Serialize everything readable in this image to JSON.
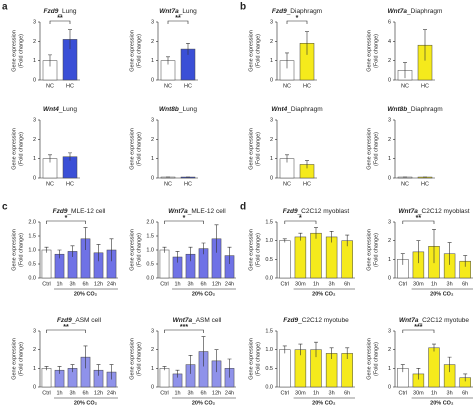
{
  "panel_labels": [
    "a",
    "b",
    "c",
    "d"
  ],
  "chart_data": [
    {
      "type": "bar",
      "title_gene": "Fzd9",
      "title_suffix": "_Lung",
      "ylabel": [
        "Gene expression",
        "(Fold change)"
      ],
      "categories": [
        "NC",
        "HC"
      ],
      "values": [
        1.0,
        2.1
      ],
      "errors": [
        0.3,
        0.5
      ],
      "colors": [
        "#ffffff",
        "#3a4fd6"
      ],
      "ylim": [
        0,
        3
      ],
      "yticks": [
        0,
        1,
        2,
        3
      ],
      "sig": {
        "label": "**",
        "between": [
          "NC",
          "HC"
        ]
      }
    },
    {
      "type": "bar",
      "title_gene": "Wnt7a",
      "title_suffix": "_Lung",
      "ylabel": [
        "Gene expression",
        "(Fold change)"
      ],
      "categories": [
        "NC",
        "HC"
      ],
      "values": [
        1.0,
        1.6
      ],
      "errors": [
        0.2,
        0.3
      ],
      "colors": [
        "#ffffff",
        "#3a4fd6"
      ],
      "ylim": [
        0,
        3
      ],
      "yticks": [
        0,
        1,
        2,
        3
      ],
      "sig": {
        "label": "**",
        "between": [
          "NC",
          "HC"
        ]
      }
    },
    {
      "type": "bar",
      "title_gene": "Wnt4",
      "title_suffix": "_Lung",
      "ylabel": [
        "Gene expression",
        "(Fold change)"
      ],
      "categories": [
        "NC",
        "HC"
      ],
      "values": [
        1.0,
        1.1
      ],
      "errors": [
        0.2,
        0.2
      ],
      "colors": [
        "#ffffff",
        "#3a4fd6"
      ],
      "ylim": [
        0,
        3
      ],
      "yticks": [
        0,
        1,
        2,
        3
      ]
    },
    {
      "type": "bar",
      "title_gene": "Wnt8b",
      "title_suffix": "_Lung",
      "ylabel": [
        "Gene expression",
        "(Fold change)"
      ],
      "categories": [
        "NC",
        "HC"
      ],
      "values": [
        0.05,
        0.05
      ],
      "errors": [
        0,
        0
      ],
      "colors": [
        "#ffffff",
        "#3a4fd6"
      ],
      "ylim": [
        0,
        3
      ],
      "yticks": [
        0,
        1,
        2,
        3
      ]
    },
    {
      "type": "bar",
      "title_gene": "Fzd9",
      "title_suffix": "_Diaphragm",
      "ylabel": [
        "Gene expression",
        "(Fold change)"
      ],
      "categories": [
        "NC",
        "HC"
      ],
      "values": [
        1.0,
        1.9
      ],
      "errors": [
        0.4,
        0.6
      ],
      "colors": [
        "#ffffff",
        "#f5ea1c"
      ],
      "ylim": [
        0,
        3
      ],
      "yticks": [
        0,
        1,
        2,
        3
      ],
      "sig": {
        "label": "*",
        "between": [
          "NC",
          "HC"
        ]
      }
    },
    {
      "type": "bar",
      "title_gene": "Wnt7a",
      "title_suffix": "_Diaphragm",
      "ylabel": [
        "Gene expression",
        "(Fold change)"
      ],
      "categories": [
        "NC",
        "HC"
      ],
      "values": [
        1.0,
        3.6
      ],
      "errors": [
        0.8,
        1.6
      ],
      "colors": [
        "#ffffff",
        "#f5ea1c"
      ],
      "ylim": [
        0,
        6
      ],
      "yticks": [
        0,
        2,
        4,
        6
      ]
    },
    {
      "type": "bar",
      "title_gene": "Wnt4",
      "title_suffix": "_Diaphragm",
      "ylabel": [
        "Gene expression",
        "(Fold change)"
      ],
      "categories": [
        "NC",
        "HC"
      ],
      "values": [
        1.0,
        0.7
      ],
      "errors": [
        0.2,
        0.2
      ],
      "colors": [
        "#ffffff",
        "#f5ea1c"
      ],
      "ylim": [
        0,
        3
      ],
      "yticks": [
        0,
        1,
        2,
        3
      ]
    },
    {
      "type": "bar",
      "title_gene": "Wnt8b",
      "title_suffix": "_Diaphragm",
      "ylabel": [
        "Gene expression",
        "(Fold change)"
      ],
      "categories": [
        "NC",
        "HC"
      ],
      "values": [
        0.05,
        0.05
      ],
      "errors": [
        0,
        0
      ],
      "colors": [
        "#ffffff",
        "#f5ea1c"
      ],
      "ylim": [
        0,
        3
      ],
      "yticks": [
        0,
        1,
        2,
        3
      ]
    },
    {
      "type": "bar",
      "title_gene": "Fzd9",
      "title_suffix": "_MLE-12 cell",
      "ylabel": [
        "Gene expression",
        "(Fold change)"
      ],
      "categories": [
        "Ctrl",
        "1h",
        "3h",
        "6h",
        "12h",
        "24h"
      ],
      "values": [
        1.0,
        0.85,
        0.95,
        1.4,
        0.9,
        1.0
      ],
      "errors": [
        0.1,
        0.15,
        0.2,
        0.4,
        0.3,
        0.4
      ],
      "colors": [
        "#ffffff",
        "#6f72e6",
        "#6f72e6",
        "#6f72e6",
        "#6f72e6",
        "#6f72e6"
      ],
      "ylim": [
        0,
        2
      ],
      "yticks": [
        {
          "value": 0,
          "label": "0.0"
        },
        {
          "value": 0.5,
          "label": "0.5"
        },
        {
          "value": 1,
          "label": "1.0"
        },
        {
          "value": 1.5,
          "label": "1.5"
        },
        {
          "value": 2,
          "label": "2.0"
        }
      ],
      "group_label": "20% CO₂",
      "sig": {
        "label": "*",
        "between": [
          "Ctrl",
          "6h"
        ]
      }
    },
    {
      "type": "bar",
      "title_gene": "Wnt7a",
      "title_suffix": "_MLE-12 cell",
      "ylabel": [
        "Gene expression",
        "(Fold change)"
      ],
      "categories": [
        "Ctrl",
        "1h",
        "3h",
        "6h",
        "12h",
        "24h"
      ],
      "values": [
        1.0,
        0.75,
        0.85,
        1.05,
        1.4,
        0.8
      ],
      "errors": [
        0.1,
        0.2,
        0.25,
        0.2,
        0.5,
        0.3
      ],
      "colors": [
        "#ffffff",
        "#6f72e6",
        "#6f72e6",
        "#6f72e6",
        "#6f72e6",
        "#6f72e6"
      ],
      "ylim": [
        0,
        2
      ],
      "yticks": [
        {
          "value": 0,
          "label": "0.0"
        },
        {
          "value": 0.5,
          "label": "0.5"
        },
        {
          "value": 1,
          "label": "1.0"
        },
        {
          "value": 1.5,
          "label": "1.5"
        },
        {
          "value": 2,
          "label": "2.0"
        }
      ],
      "group_label": "20% CO₂",
      "sig": {
        "label": "*",
        "between": [
          "Ctrl",
          "6h"
        ]
      }
    },
    {
      "type": "bar",
      "title_gene": "Fzd9",
      "title_suffix": "_ASM cell",
      "ylabel": [
        "Gene expression",
        "(Fold change)"
      ],
      "categories": [
        "Ctrl",
        "1h",
        "3h",
        "6h",
        "12h",
        "24h"
      ],
      "values": [
        1.0,
        0.9,
        1.0,
        1.6,
        0.9,
        0.8
      ],
      "errors": [
        0.1,
        0.2,
        0.2,
        0.6,
        0.3,
        0.4
      ],
      "colors": [
        "#ffffff",
        "#8f92ea",
        "#8f92ea",
        "#8f92ea",
        "#8f92ea",
        "#8f92ea"
      ],
      "ylim": [
        0,
        3
      ],
      "yticks": [
        0,
        1,
        2,
        3
      ],
      "group_label": "20% CO₂",
      "sig": {
        "label": "**",
        "between": [
          "Ctrl",
          "6h"
        ]
      }
    },
    {
      "type": "bar",
      "title_gene": "Wnt7a",
      "title_suffix": "_ASM cell",
      "ylabel": [
        "Gene expression",
        "(Fold change)"
      ],
      "categories": [
        "Ctrl",
        "1h",
        "3h",
        "6h",
        "12h",
        "24h"
      ],
      "values": [
        1.0,
        0.7,
        1.2,
        1.9,
        1.4,
        1.0
      ],
      "errors": [
        0.1,
        0.2,
        0.5,
        0.8,
        0.6,
        0.5
      ],
      "colors": [
        "#ffffff",
        "#8f92ea",
        "#8f92ea",
        "#8f92ea",
        "#8f92ea",
        "#8f92ea"
      ],
      "ylim": [
        0,
        3
      ],
      "yticks": [
        0,
        1,
        2,
        3
      ],
      "group_label": "20% CO₂",
      "sig": {
        "label": "***",
        "between": [
          "Ctrl",
          "6h"
        ]
      }
    },
    {
      "type": "bar",
      "title_gene": "Fzd9",
      "title_suffix": "_C2C12 myoblast",
      "ylabel": [
        "Gene expression",
        "(Fold change)"
      ],
      "categories": [
        "Ctrl",
        "30m",
        "1h",
        "3h",
        "6h"
      ],
      "values": [
        1.0,
        1.1,
        1.2,
        1.1,
        1.0
      ],
      "errors": [
        0.05,
        0.1,
        0.15,
        0.15,
        0.15
      ],
      "colors": [
        "#ffffff",
        "#f5ea1c",
        "#f5ea1c",
        "#f5ea1c",
        "#f5ea1c"
      ],
      "ylim": [
        0,
        1.5
      ],
      "yticks": [
        {
          "value": 0,
          "label": "0.0"
        },
        {
          "value": 0.5,
          "label": "0.5"
        },
        {
          "value": 1,
          "label": "1.0"
        },
        1.5
      ],
      "group_label": "20% CO₂",
      "sig": {
        "label": "*",
        "between": [
          "Ctrl",
          "1h"
        ]
      }
    },
    {
      "type": "bar",
      "title_gene": "Wnt7a",
      "title_suffix": "_C2C12 myoblast",
      "ylabel": [
        "Gene expression",
        "(Fold change)"
      ],
      "categories": [
        "Ctrl",
        "30m",
        "1h",
        "3h",
        "6h"
      ],
      "values": [
        1.0,
        1.4,
        1.7,
        1.3,
        0.9
      ],
      "errors": [
        0.3,
        0.6,
        0.9,
        0.6,
        0.3
      ],
      "colors": [
        "#ffffff",
        "#f5ea1c",
        "#f5ea1c",
        "#f5ea1c",
        "#f5ea1c"
      ],
      "ylim": [
        0,
        3
      ],
      "yticks": [
        0,
        1,
        2,
        3
      ],
      "group_label": "20% CO₂",
      "sig": {
        "label": "**",
        "between": [
          "Ctrl",
          "1h"
        ]
      }
    },
    {
      "type": "bar",
      "title_gene": "Fzd9",
      "title_suffix": "_C2C12 myotube",
      "ylabel": [
        "Gene expression",
        "(Fold change)"
      ],
      "categories": [
        "Ctrl",
        "30m",
        "1h",
        "3h",
        "6h"
      ],
      "values": [
        1.0,
        1.0,
        1.0,
        0.9,
        0.9
      ],
      "errors": [
        0.1,
        0.15,
        0.2,
        0.15,
        0.15
      ],
      "colors": [
        "#ffffff",
        "#f5ea1c",
        "#f5ea1c",
        "#f5ea1c",
        "#f5ea1c"
      ],
      "ylim": [
        0,
        1.5
      ],
      "yticks": [
        {
          "value": 0,
          "label": "0.0"
        },
        {
          "value": 0.5,
          "label": "0.5"
        },
        {
          "value": 1,
          "label": "1.0"
        },
        1.5
      ],
      "group_label": "20% CO₂"
    },
    {
      "type": "bar",
      "title_gene": "Wnt7a",
      "title_suffix": "_C2C12 myotube",
      "ylabel": [
        "Gene expression",
        "(Fold change)"
      ],
      "categories": [
        "Ctrl",
        "30m",
        "1h",
        "3h",
        "6h"
      ],
      "values": [
        1.0,
        0.7,
        2.1,
        1.2,
        0.5
      ],
      "errors": [
        0.2,
        0.3,
        0.2,
        0.4,
        0.2
      ],
      "colors": [
        "#ffffff",
        "#f5ea1c",
        "#f5ea1c",
        "#f5ea1c",
        "#f5ea1c"
      ],
      "ylim": [
        0,
        3
      ],
      "yticks": [
        0,
        1,
        2,
        3
      ],
      "group_label": "20% CO₂",
      "sig": {
        "label": "***",
        "between": [
          "Ctrl",
          "1h"
        ]
      }
    }
  ]
}
